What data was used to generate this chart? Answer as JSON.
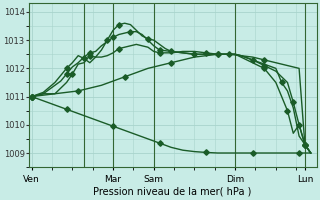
{
  "background_color": "#c8ece6",
  "grid_color": "#a8d4cc",
  "line_color": "#1a5c28",
  "title": "Pression niveau de la mer( hPa )",
  "ylim": [
    1008.5,
    1014.3
  ],
  "yticks": [
    1009,
    1010,
    1011,
    1012,
    1013,
    1014
  ],
  "xlabel_labels": [
    "Ven",
    "Mar",
    "Sam",
    "Dim",
    "Lun"
  ],
  "figsize": [
    3.2,
    2.0
  ],
  "dpi": 100,
  "vline_color": "#336633",
  "lines": [
    {
      "x": [
        0,
        2,
        4,
        6,
        8,
        10,
        12,
        14,
        16,
        18,
        20,
        22,
        24,
        26,
        28,
        30,
        32,
        34,
        36,
        38,
        40,
        42,
        44,
        46,
        48
      ],
      "y": [
        1011.0,
        1010.85,
        1010.7,
        1010.55,
        1010.4,
        1010.25,
        1010.1,
        1009.95,
        1009.8,
        1009.65,
        1009.5,
        1009.35,
        1009.2,
        1009.1,
        1009.05,
        1009.02,
        1009.0,
        1009.0,
        1009.0,
        1009.0,
        1009.0,
        1009.0,
        1009.0,
        1009.0,
        1009.0
      ],
      "marker_x": [
        0,
        6,
        14,
        22,
        30,
        38,
        46
      ],
      "marker_y": [
        1011.0,
        1010.55,
        1009.95,
        1009.35,
        1009.02,
        1009.0,
        1009.0
      ]
    },
    {
      "x": [
        0,
        2,
        4,
        6,
        8,
        10,
        12,
        14,
        16,
        18,
        20,
        22,
        24,
        26,
        28,
        30,
        32,
        34,
        36,
        38,
        40,
        42,
        44,
        46,
        47,
        48
      ],
      "y": [
        1011.0,
        1011.1,
        1011.1,
        1011.15,
        1011.2,
        1011.3,
        1011.4,
        1011.55,
        1011.7,
        1011.85,
        1012.0,
        1012.1,
        1012.2,
        1012.3,
        1012.4,
        1012.45,
        1012.5,
        1012.5,
        1012.45,
        1012.4,
        1012.3,
        1012.2,
        1012.1,
        1012.0,
        1009.3,
        1009.0
      ],
      "marker_x": [
        0,
        8,
        16,
        24,
        32,
        40,
        47
      ],
      "marker_y": [
        1011.0,
        1011.2,
        1011.7,
        1012.2,
        1012.5,
        1012.3,
        1009.3
      ]
    },
    {
      "x": [
        0,
        2,
        4,
        5,
        6,
        7,
        8,
        9,
        10,
        11,
        12,
        13,
        14,
        15,
        16,
        17,
        18,
        19,
        20,
        21,
        22,
        24,
        26,
        28,
        30,
        32,
        34,
        35,
        36,
        38,
        40,
        42,
        43,
        44,
        45,
        46,
        47,
        48
      ],
      "y": [
        1011.0,
        1011.05,
        1011.1,
        1011.3,
        1011.5,
        1011.8,
        1012.15,
        1012.2,
        1012.45,
        1012.4,
        1012.4,
        1012.45,
        1012.55,
        1012.7,
        1012.75,
        1012.8,
        1012.85,
        1012.8,
        1012.75,
        1012.6,
        1012.55,
        1012.55,
        1012.6,
        1012.6,
        1012.55,
        1012.5,
        1012.5,
        1012.5,
        1012.45,
        1012.3,
        1012.15,
        1012.0,
        1011.5,
        1011.2,
        1010.6,
        1009.6,
        1009.3,
        1009.0
      ],
      "marker_x": [
        0,
        7,
        10,
        15,
        22,
        30,
        38,
        43,
        47
      ],
      "marker_y": [
        1011.0,
        1011.8,
        1012.45,
        1012.7,
        1012.55,
        1012.55,
        1012.3,
        1011.5,
        1009.3
      ]
    },
    {
      "x": [
        0,
        2,
        4,
        5,
        6,
        7,
        8,
        9,
        10,
        11,
        12,
        13,
        14,
        15,
        16,
        17,
        18,
        19,
        20,
        21,
        22,
        24,
        26,
        28,
        30,
        32,
        34,
        35,
        36,
        38,
        40,
        42,
        44,
        45,
        46,
        47,
        48
      ],
      "y": [
        1011.0,
        1011.1,
        1011.4,
        1011.55,
        1011.8,
        1012.05,
        1012.2,
        1012.4,
        1012.55,
        1012.6,
        1012.8,
        1012.95,
        1013.1,
        1013.2,
        1013.25,
        1013.3,
        1013.3,
        1013.2,
        1013.0,
        1012.8,
        1012.65,
        1012.6,
        1012.55,
        1012.5,
        1012.5,
        1012.5,
        1012.5,
        1012.5,
        1012.45,
        1012.3,
        1012.1,
        1011.9,
        1011.5,
        1010.8,
        1010.0,
        1009.3,
        1009.0
      ],
      "marker_x": [
        0,
        6,
        10,
        14,
        17,
        22,
        28,
        34,
        40,
        45,
        47
      ],
      "marker_y": [
        1011.0,
        1011.8,
        1012.55,
        1013.1,
        1013.3,
        1012.65,
        1012.5,
        1012.5,
        1012.1,
        1010.8,
        1009.3
      ]
    },
    {
      "x": [
        0,
        2,
        4,
        5,
        6,
        7,
        8,
        9,
        10,
        11,
        12,
        13,
        14,
        15,
        16,
        17,
        18,
        19,
        20,
        21,
        22,
        23,
        24,
        26,
        28,
        30,
        32,
        34,
        35,
        36,
        38,
        40,
        42,
        44,
        45,
        46,
        47,
        48
      ],
      "y": [
        1011.0,
        1011.15,
        1011.5,
        1011.75,
        1012.0,
        1012.2,
        1012.45,
        1012.35,
        1012.2,
        1012.4,
        1012.65,
        1013.0,
        1013.35,
        1013.55,
        1013.6,
        1013.55,
        1013.35,
        1013.15,
        1013.05,
        1013.0,
        1012.85,
        1012.7,
        1012.6,
        1012.55,
        1012.5,
        1012.5,
        1012.5,
        1012.5,
        1012.5,
        1012.4,
        1012.2,
        1012.0,
        1011.5,
        1010.5,
        1009.7,
        1010.0,
        1009.3,
        1009.0
      ],
      "marker_x": [
        0,
        6,
        9,
        13,
        15,
        20,
        24,
        32,
        40,
        44,
        46,
        47
      ],
      "marker_y": [
        1011.0,
        1012.0,
        1012.35,
        1013.0,
        1013.55,
        1013.05,
        1012.6,
        1012.5,
        1012.0,
        1010.5,
        1010.0,
        1009.3
      ]
    }
  ],
  "vline_x": [
    9,
    14,
    21,
    35,
    47
  ],
  "xlim": [
    -0.5,
    49
  ]
}
